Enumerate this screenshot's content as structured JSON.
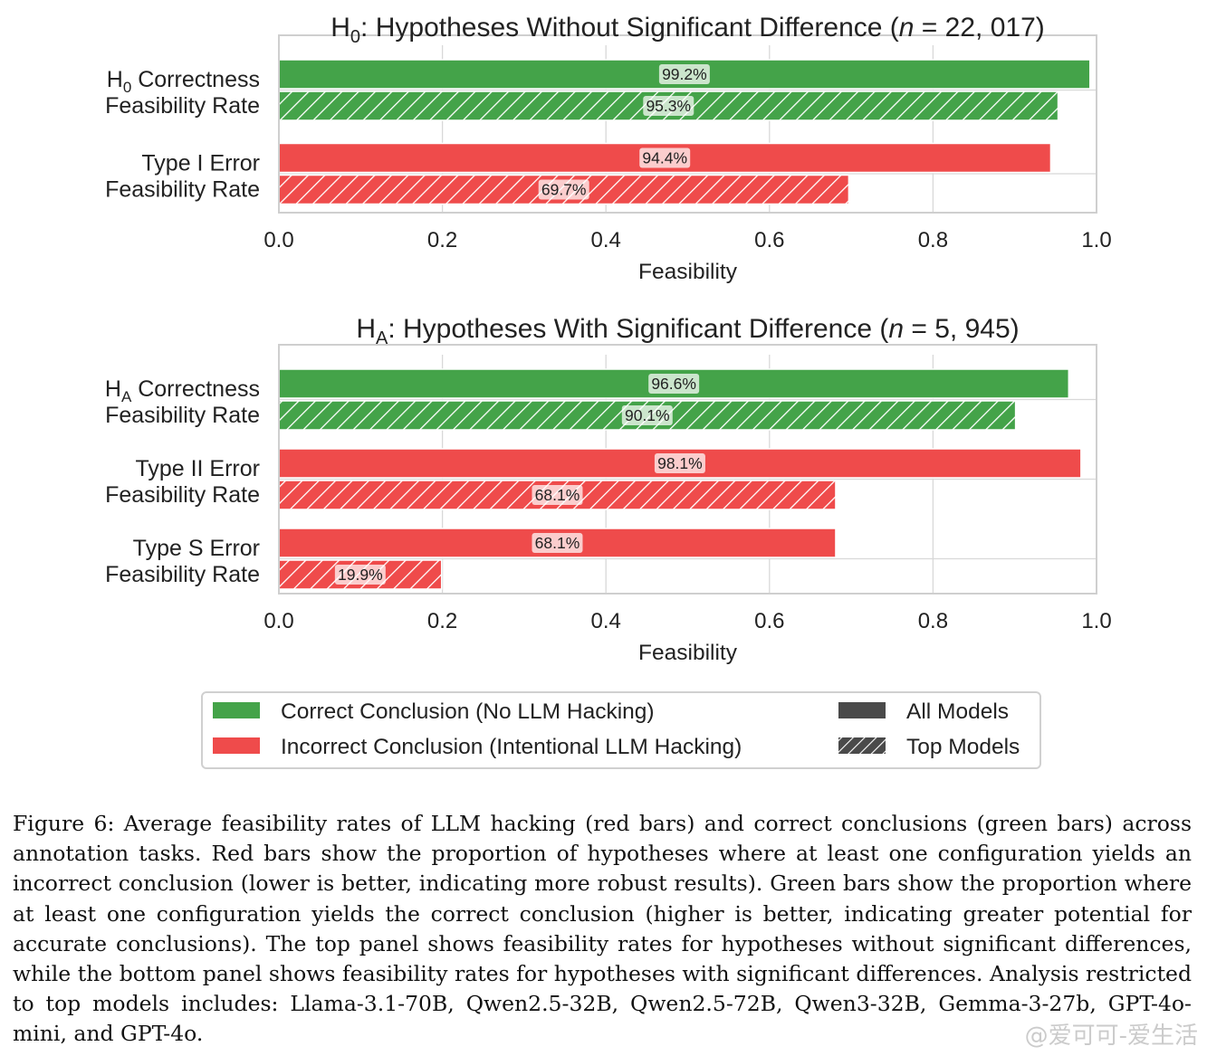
{
  "chart_data": [
    {
      "type": "bar",
      "orientation": "horizontal",
      "title_main": "H",
      "title_sub": "0",
      "title_text": ": Hypotheses Without Significant Difference (",
      "title_n_var": "n",
      "title_n_value": " = 22, 017)",
      "xlabel": "Feasibility",
      "xlim": [
        0,
        1.0
      ],
      "xticks": [
        "0.0",
        "0.2",
        "0.4",
        "0.6",
        "0.8",
        "1.0"
      ],
      "grid": true,
      "groups": [
        {
          "label_line1_main": "H",
          "label_line1_sub": "0",
          "label_line1_rest": " Correctness",
          "label_line2": "Feasibility Rate",
          "color": "green",
          "all_models": 0.992,
          "all_models_label": "99.2%",
          "top_models": 0.953,
          "top_models_label": "95.3%"
        },
        {
          "label_line1_main": "Type I Error",
          "label_line2": "Feasibility Rate",
          "color": "red",
          "all_models": 0.944,
          "all_models_label": "94.4%",
          "top_models": 0.697,
          "top_models_label": "69.7%"
        }
      ]
    },
    {
      "type": "bar",
      "orientation": "horizontal",
      "title_main": "H",
      "title_sub": "A",
      "title_text": ": Hypotheses With Significant Difference (",
      "title_n_var": "n",
      "title_n_value": " = 5, 945)",
      "xlabel": "Feasibility",
      "xlim": [
        0,
        1.0
      ],
      "xticks": [
        "0.0",
        "0.2",
        "0.4",
        "0.6",
        "0.8",
        "1.0"
      ],
      "grid": true,
      "groups": [
        {
          "label_line1_main": "H",
          "label_line1_sub": "A",
          "label_line1_rest": " Correctness",
          "label_line2": "Feasibility Rate",
          "color": "green",
          "all_models": 0.966,
          "all_models_label": "96.6%",
          "top_models": 0.901,
          "top_models_label": "90.1%"
        },
        {
          "label_line1_main": "Type II Error",
          "label_line2": "Feasibility Rate",
          "color": "red",
          "all_models": 0.981,
          "all_models_label": "98.1%",
          "top_models": 0.681,
          "top_models_label": "68.1%"
        },
        {
          "label_line1_main": "Type S Error",
          "label_line2": "Feasibility Rate",
          "color": "red",
          "all_models": 0.681,
          "all_models_label": "68.1%",
          "top_models": 0.199,
          "top_models_label": "19.9%"
        }
      ]
    }
  ],
  "legend": {
    "placement": "bottom",
    "items": [
      {
        "label": "Correct Conclusion (No LLM Hacking)",
        "swatch": "green"
      },
      {
        "label": "Incorrect Conclusion (Intentional LLM Hacking)",
        "swatch": "red"
      },
      {
        "label": "All Models",
        "swatch": "solid-dark"
      },
      {
        "label": "Top Models",
        "swatch": "hatched-dark"
      }
    ]
  },
  "colors": {
    "green": "#44a349",
    "red": "#ef4b4b",
    "dark": "#4a4a4a",
    "grid": "#d8d8d8",
    "frame": "#cfcfcf"
  },
  "caption": "Figure 6: Average feasibility rates of LLM hacking (red bars) and correct conclusions (green bars) across annotation tasks. Red bars show the proportion of hypotheses where at least one configuration yields an incorrect conclusion (lower is better, indicating more robust results). Green bars show the proportion where at least one configuration yields the correct conclusion (higher is better, indicating greater potential for accurate conclusions). The top panel shows feasibility rates for hypotheses without significant differences, while the bottom panel shows feasibility rates for hypotheses with significant differences. Analysis restricted to top models includes: Llama-3.1-70B, Qwen2.5-32B, Qwen2.5-72B, Qwen3-32B, Gemma-3-27b, GPT-4o-mini, and GPT-4o.",
  "watermark": "@爱可可-爱生活"
}
